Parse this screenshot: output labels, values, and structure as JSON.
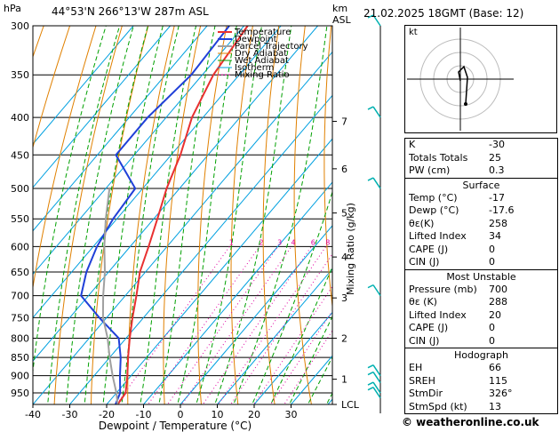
{
  "header": {
    "hpa_label": "hPa",
    "location": "44°53'N 266°13'W 287m ASL",
    "km_label": "km",
    "asl_label": "ASL",
    "datetime": "21.02.2025 18GMT (Base: 12)"
  },
  "legend": [
    "Temperature",
    "Dewpoint",
    "Parcel Trajectory",
    "Dry Adiabat",
    "Wet Adiabat",
    "Isotherm",
    "Mixing Ratio"
  ],
  "colors": {
    "temperature": "#e83030",
    "dewpoint": "#2040d8",
    "parcel": "#a0a0a0",
    "dry_adiabat": "#e08000",
    "wet_adiabat": "#00a000",
    "isotherm": "#00a0e0",
    "mixing_ratio": "#e000a0",
    "wind": "#00b0b0"
  },
  "chart_data": {
    "type": "line",
    "xlabel": "Dewpoint / Temperature (°C)",
    "ylabel": "Mixing Ratio (g/kg)",
    "x_ticks": [
      -40,
      -30,
      -20,
      -10,
      0,
      10,
      20,
      30
    ],
    "y_log_scale": true,
    "pressure_ticks": [
      300,
      350,
      400,
      450,
      500,
      550,
      600,
      650,
      700,
      750,
      800,
      850,
      900,
      950
    ],
    "height_km_ticks": [
      {
        "label": "7",
        "p": 405
      },
      {
        "label": "6",
        "p": 470
      },
      {
        "label": "5",
        "p": 540
      },
      {
        "label": "4",
        "p": 620
      },
      {
        "label": "3",
        "p": 705
      },
      {
        "label": "2",
        "p": 800
      },
      {
        "label": "1",
        "p": 910
      },
      {
        "label": "LCL",
        "p": 985
      }
    ],
    "mixing_ratio_labels": [
      "1",
      "2",
      "3",
      "4",
      "6",
      "8",
      "10",
      "15",
      "20",
      "25"
    ],
    "mixing_ratio_values": [
      1,
      2,
      3,
      4,
      6,
      8,
      10,
      15,
      20,
      25
    ],
    "isotherms": [
      -100,
      -90,
      -80,
      -70,
      -60,
      -50,
      -40,
      -30,
      -20,
      -10,
      0,
      10,
      20,
      30,
      40
    ],
    "series": [
      {
        "name": "Temperature",
        "p": [
          985,
          950,
          900,
          850,
          800,
          750,
          700,
          650,
          600,
          550,
          500,
          450,
          400,
          350,
          300
        ],
        "t": [
          -17,
          -17.5,
          -21,
          -25,
          -29,
          -33,
          -37,
          -41.5,
          -45,
          -49,
          -53.5,
          -57.5,
          -63,
          -67,
          -69
        ]
      },
      {
        "name": "Dewpoint",
        "p": [
          985,
          950,
          900,
          850,
          800,
          750,
          700,
          650,
          600,
          550,
          500,
          450,
          400,
          350,
          300
        ],
        "t": [
          -17.6,
          -19,
          -23,
          -27,
          -32,
          -42,
          -52,
          -56,
          -59,
          -61,
          -62,
          -75,
          -75,
          -73,
          -74
        ]
      },
      {
        "name": "Parcel Trajectory",
        "p": [
          985,
          950,
          900,
          850,
          800,
          750,
          700,
          650,
          600,
          550,
          500
        ],
        "t": [
          -17,
          -20,
          -25,
          -30,
          -35,
          -41,
          -46,
          -51,
          -57,
          -63,
          -69
        ]
      }
    ],
    "wind_barbs_p": [
      300,
      400,
      500,
      700,
      900,
      920,
      950,
      965
    ]
  },
  "indices": [
    {
      "k": "K",
      "v": "-30"
    },
    {
      "k": "Totals Totals",
      "v": "25"
    },
    {
      "k": "PW (cm)",
      "v": "0.3"
    }
  ],
  "surface": {
    "title": "Surface",
    "rows": [
      {
        "k": "Temp (°C)",
        "v": "-17"
      },
      {
        "k": "Dewp (°C)",
        "v": "-17.6"
      },
      {
        "k": "θε(K)",
        "v": "258"
      },
      {
        "k": "Lifted Index",
        "v": "34"
      },
      {
        "k": "CAPE (J)",
        "v": "0"
      },
      {
        "k": "CIN (J)",
        "v": "0"
      }
    ]
  },
  "unstable": {
    "title": "Most Unstable",
    "rows": [
      {
        "k": "Pressure (mb)",
        "v": "700"
      },
      {
        "k": "θε (K)",
        "v": "288"
      },
      {
        "k": "Lifted Index",
        "v": "20"
      },
      {
        "k": "CAPE (J)",
        "v": "0"
      },
      {
        "k": "CIN (J)",
        "v": "0"
      }
    ]
  },
  "hodograph": {
    "title": "Hodograph",
    "label": "kt",
    "rows": [
      {
        "k": "EH",
        "v": "66"
      },
      {
        "k": "SREH",
        "v": "115"
      },
      {
        "k": "StmDir",
        "v": "326°"
      },
      {
        "k": "StmSpd (kt)",
        "v": "13"
      }
    ]
  },
  "copyright": "© weatheronline.co.uk"
}
